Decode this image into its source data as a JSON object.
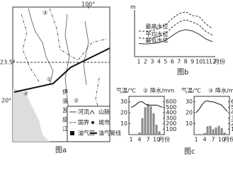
{
  "map": {
    "caption": "图a",
    "longitude": "100°",
    "latitudes": [
      "23.5°",
      "20°"
    ],
    "points": [
      "①",
      "②",
      "③",
      "④"
    ],
    "river_name": [
      "伊",
      "洛",
      "瓦",
      "底",
      "江"
    ],
    "legend": [
      "河流",
      "山脉",
      "国界",
      "城市",
      "油气田",
      "油气管线"
    ]
  },
  "hydrograph": {
    "caption": "图b",
    "y_unit": "m",
    "x_unit": "月份",
    "months": [
      1,
      2,
      3,
      4,
      5,
      6,
      7,
      8,
      9,
      10,
      11,
      12
    ],
    "ylim": [
      0,
      10
    ],
    "series": [
      {
        "name": "最高水位",
        "values": [
          5.5,
          5.4,
          5.6,
          6,
          6.8,
          8.2,
          9.2,
          9.6,
          8.8,
          8.6,
          7,
          6
        ]
      },
      {
        "name": "平均水位",
        "values": [
          4,
          3.9,
          4,
          4.3,
          5,
          6.3,
          7.4,
          7.9,
          7.4,
          6.8,
          5.4,
          4.6
        ]
      },
      {
        "name": "最低水位",
        "values": [
          2.8,
          2.7,
          2.8,
          3,
          3.5,
          4.5,
          5.4,
          5.8,
          5.5,
          4.8,
          3.8,
          3.2
        ]
      }
    ]
  },
  "climate": {
    "caption": "图c",
    "charts": [
      {
        "station": "②",
        "temp_label": "气温/℃",
        "precip_label": "降水/mm",
        "ylim": [
          0,
          35
        ],
        "yticks": [
          10,
          20,
          30
        ],
        "y2lim": [
          0,
          700
        ],
        "y2ticks": [
          100,
          200,
          300,
          400,
          500,
          600
        ],
        "xticks": [
          1,
          4,
          7,
          10
        ],
        "x_unit": "月份",
        "temperature": [
          25,
          26,
          28,
          30,
          30,
          28,
          27,
          27,
          27,
          27,
          26,
          25
        ],
        "precipitation": [
          5,
          5,
          10,
          40,
          300,
          500,
          560,
          520,
          390,
          180,
          60,
          10
        ]
      },
      {
        "station": "③",
        "temp_label": "气温/℃",
        "precip_label": "降水/mm",
        "ylim": [
          0,
          35
        ],
        "yticks": [
          10,
          20,
          30
        ],
        "y2lim": [
          0,
          700
        ],
        "y2ticks": [
          100,
          200,
          300,
          400,
          500,
          600
        ],
        "xticks": [
          1,
          4,
          7,
          10
        ],
        "x_unit": "月份",
        "temperature": [
          20,
          23,
          27,
          30,
          31,
          30,
          30,
          29,
          28,
          27,
          24,
          21
        ],
        "precipitation": [
          5,
          5,
          5,
          30,
          150,
          160,
          100,
          130,
          160,
          120,
          40,
          10
        ]
      }
    ]
  }
}
